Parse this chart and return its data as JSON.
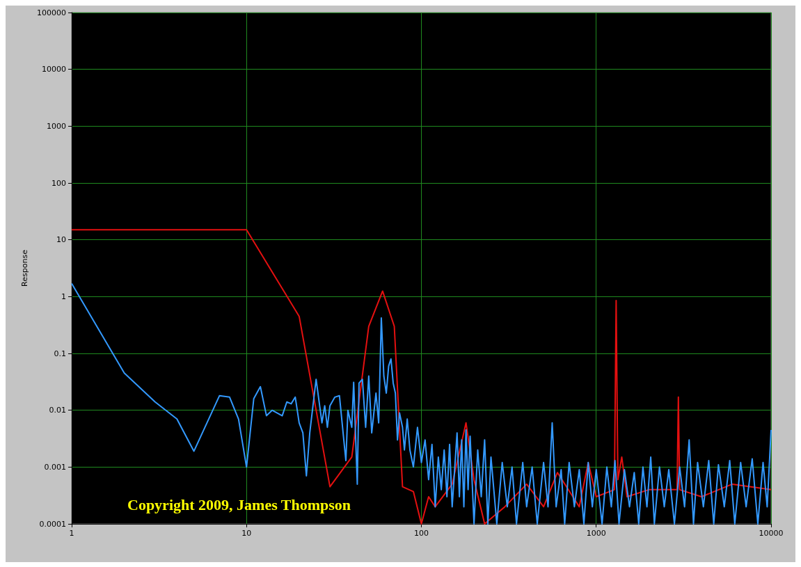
{
  "chart_data": {
    "type": "line",
    "ylabel": "Response",
    "log": "xy",
    "grid": true,
    "marker": "none",
    "line_style": "solid",
    "xlim": [
      1,
      10000
    ],
    "xticks": [
      1,
      10,
      100,
      1000,
      10000
    ],
    "ylim": [
      0.0001,
      100000
    ],
    "yticks": [
      0.0001,
      0.001,
      0.01,
      0.1,
      1,
      10,
      100,
      1000,
      10000,
      100000
    ],
    "annotations": [
      "Copyright 2009, James Thompson"
    ],
    "series": [
      {
        "color": "#e41010",
        "x": [
          1,
          10,
          20,
          30,
          40,
          50,
          60,
          70,
          78,
          90,
          100,
          110,
          120,
          150,
          180,
          200,
          230,
          300,
          400,
          500,
          600,
          800,
          900,
          1000,
          1270,
          1300,
          1330,
          1400,
          1500,
          2000,
          2900,
          2950,
          3000,
          4000,
          6000,
          10000
        ],
        "values": [
          15,
          15,
          0.45,
          0.00045,
          0.0015,
          0.3,
          1.25,
          0.3,
          0.00045,
          0.00037,
          0.0001,
          0.0003,
          0.0002,
          0.0005,
          0.006,
          0.0006,
          0.0001,
          0.0002,
          0.0005,
          0.0002,
          0.0008,
          0.0002,
          0.0012,
          0.0003,
          0.0004,
          0.85,
          0.0006,
          0.0015,
          0.0003,
          0.0004,
          0.0004,
          0.017,
          0.0004,
          0.0003,
          0.0005,
          0.0004
        ]
      },
      {
        "color": "#3399ff",
        "x": [
          1,
          2,
          3,
          4,
          5,
          7,
          8,
          9,
          10,
          11,
          12,
          13,
          14,
          16,
          17,
          18,
          19,
          20,
          21,
          22,
          23,
          25,
          27,
          28,
          29,
          30,
          32,
          34,
          36,
          37,
          38,
          40,
          41,
          43,
          44,
          46,
          48,
          50,
          52,
          55,
          57,
          59,
          61,
          63,
          65,
          67,
          69,
          71,
          73,
          75,
          78,
          80,
          83,
          86,
          90,
          95,
          100,
          105,
          110,
          115,
          120,
          125,
          130,
          135,
          140,
          145,
          150,
          160,
          165,
          170,
          175,
          180,
          185,
          190,
          200,
          210,
          220,
          230,
          240,
          250,
          270,
          290,
          310,
          330,
          350,
          380,
          400,
          430,
          460,
          500,
          530,
          560,
          590,
          630,
          660,
          700,
          750,
          800,
          850,
          900,
          950,
          1000,
          1080,
          1150,
          1220,
          1280,
          1350,
          1450,
          1550,
          1650,
          1750,
          1850,
          1950,
          2050,
          2150,
          2300,
          2450,
          2600,
          2800,
          3000,
          3200,
          3400,
          3600,
          3800,
          4100,
          4400,
          4700,
          5000,
          5400,
          5800,
          6200,
          6700,
          7200,
          7800,
          8400,
          9000,
          9500,
          10000
        ],
        "values": [
          1.7,
          0.045,
          0.014,
          0.007,
          0.0019,
          0.018,
          0.017,
          0.007,
          0.001,
          0.016,
          0.026,
          0.008,
          0.01,
          0.008,
          0.014,
          0.013,
          0.017,
          0.006,
          0.004,
          0.0007,
          0.004,
          0.035,
          0.006,
          0.012,
          0.005,
          0.012,
          0.017,
          0.018,
          0.003,
          0.0013,
          0.01,
          0.005,
          0.031,
          0.0005,
          0.03,
          0.035,
          0.005,
          0.04,
          0.004,
          0.02,
          0.006,
          0.42,
          0.04,
          0.02,
          0.06,
          0.08,
          0.03,
          0.02,
          0.003,
          0.009,
          0.005,
          0.002,
          0.007,
          0.002,
          0.001,
          0.005,
          0.0012,
          0.003,
          0.0006,
          0.0025,
          0.0002,
          0.0015,
          0.0004,
          0.002,
          0.0003,
          0.0025,
          0.0002,
          0.004,
          0.0003,
          0.003,
          0.0002,
          0.0045,
          0.0004,
          0.0035,
          0.0001,
          0.002,
          0.0003,
          0.003,
          0.0001,
          0.0015,
          0.0001,
          0.0012,
          0.0002,
          0.001,
          0.0001,
          0.0012,
          0.0002,
          0.001,
          0.0001,
          0.0012,
          0.0002,
          0.006,
          0.0002,
          0.0009,
          0.0001,
          0.0012,
          0.0002,
          0.0009,
          0.0001,
          0.0012,
          0.0002,
          0.0009,
          0.0001,
          0.001,
          0.0002,
          0.0013,
          0.0001,
          0.0009,
          0.0002,
          0.0008,
          0.0001,
          0.001,
          0.0002,
          0.0015,
          0.0001,
          0.001,
          0.0002,
          0.0009,
          0.0001,
          0.001,
          0.0002,
          0.003,
          0.0001,
          0.0012,
          0.0002,
          0.0013,
          0.0001,
          0.0011,
          0.0002,
          0.0013,
          0.0001,
          0.0012,
          0.0002,
          0.0014,
          0.0001,
          0.0012,
          0.0002,
          0.0045
        ]
      }
    ]
  }
}
